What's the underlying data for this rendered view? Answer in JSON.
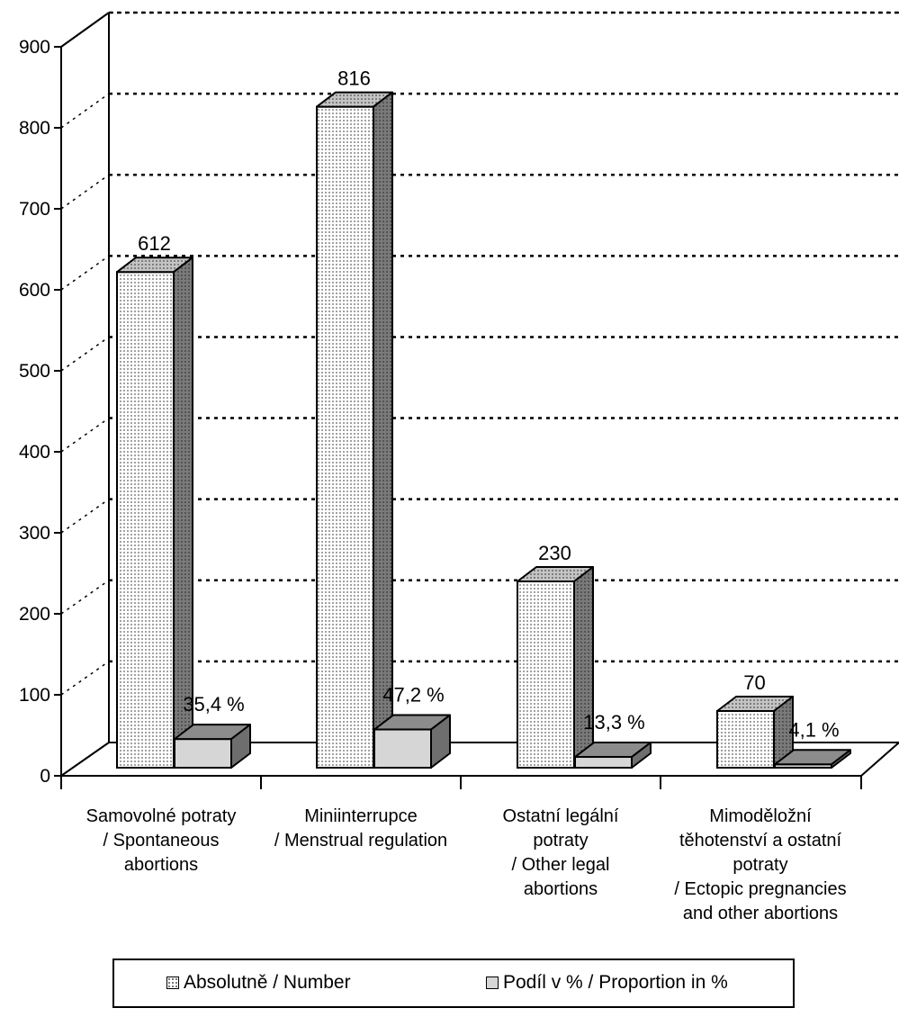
{
  "chart_data": {
    "type": "bar",
    "title": "",
    "xlabel": "",
    "ylabel": "",
    "ylim": [
      0,
      900
    ],
    "yticks": [
      "0",
      "100",
      "200",
      "300",
      "400",
      "500",
      "600",
      "700",
      "800",
      "900"
    ],
    "grid": true,
    "legend_position": "bottom",
    "categories": [
      [
        "Samovolné potraty",
        "/ Spontaneous",
        "abortions"
      ],
      [
        "Miniinterrupce",
        "/ Menstrual regulation"
      ],
      [
        "Ostatní legální",
        "potraty",
        "/ Other legal",
        "abortions"
      ],
      [
        "Mimoděložní",
        "těhotenství a ostatní",
        "potraty",
        "/ Ectopic pregnancies",
        "and other abortions"
      ]
    ],
    "series": [
      {
        "name": "Absolutně / Number",
        "values": [
          612,
          816,
          230,
          70
        ],
        "labels": [
          "612",
          "816",
          "230",
          "70"
        ]
      },
      {
        "name": "Podíl v % / Proportion in %",
        "values": [
          35.4,
          47.2,
          13.3,
          4.1
        ],
        "labels": [
          "35,4 %",
          "47,2 %",
          "13,3 %",
          "4,1 %"
        ]
      }
    ],
    "colors": {
      "number_fill": "#ffffff",
      "number_dots": "#555555",
      "number_side": "#7a7a7a",
      "number_top": "#c4c4c4",
      "percent_fill": "#d6d6d6",
      "percent_side": "#6e6e6e",
      "percent_top": "#8c8c8c"
    }
  }
}
